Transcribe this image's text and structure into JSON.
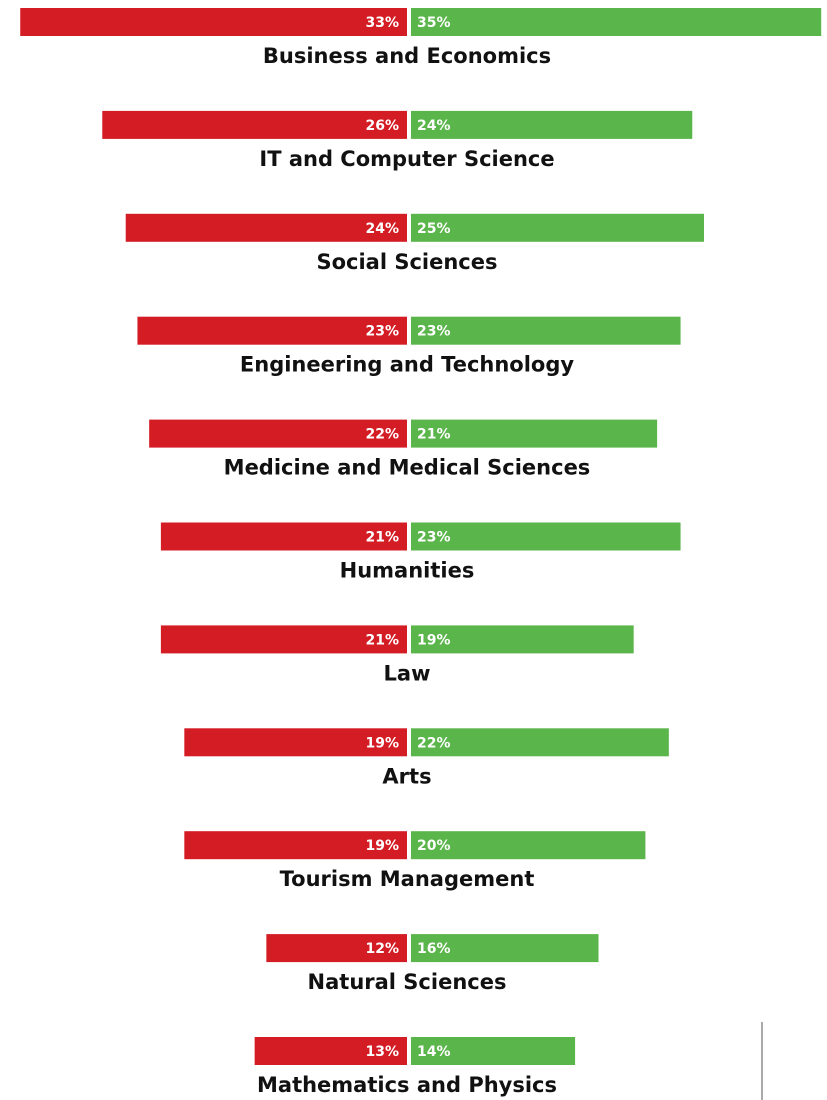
{
  "chart_data": {
    "type": "butterfly",
    "categories": [
      "Business and Economics",
      "IT and Computer Science",
      "Social Sciences",
      "Engineering and Technology",
      "Medicine and Medical Sciences",
      "Humanities",
      "Law",
      "Arts",
      "Tourism Management",
      "Natural Sciences",
      "Mathematics and Physics"
    ],
    "series": [
      {
        "color": "#d41c24",
        "side": "left",
        "values": [
          33,
          26,
          24,
          23,
          22,
          21,
          21,
          19,
          19,
          12,
          13
        ],
        "value_labels": [
          "33%",
          "26%",
          "24%",
          "23%",
          "22%",
          "21%",
          "21%",
          "19%",
          "19%",
          "12%",
          "13%"
        ]
      },
      {
        "color": "#5ab54a",
        "side": "right",
        "values": [
          35,
          24,
          25,
          23,
          21,
          23,
          19,
          22,
          20,
          16,
          14
        ],
        "value_labels": [
          "35%",
          "24%",
          "25%",
          "23%",
          "21%",
          "23%",
          "19%",
          "22%",
          "20%",
          "16%",
          "14%"
        ]
      }
    ]
  }
}
